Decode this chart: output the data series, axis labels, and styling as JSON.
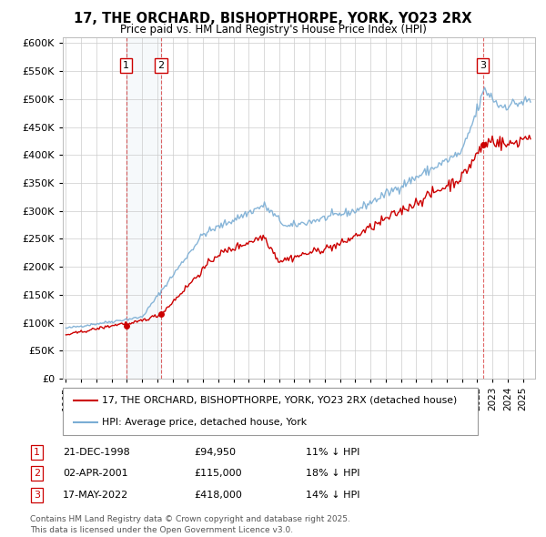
{
  "title": "17, THE ORCHARD, BISHOPTHORPE, YORK, YO23 2RX",
  "subtitle": "Price paid vs. HM Land Registry's House Price Index (HPI)",
  "ylim": [
    0,
    600000
  ],
  "yticks": [
    0,
    50000,
    100000,
    150000,
    200000,
    250000,
    300000,
    350000,
    400000,
    450000,
    500000,
    550000,
    600000
  ],
  "xlim_start": 1994.8,
  "xlim_end": 2025.8,
  "hpi_color": "#7aadd4",
  "price_color": "#cc0000",
  "grid_color": "#cccccc",
  "span_color": "#c8d8e8",
  "purchases": [
    {
      "label": "1",
      "date_num": 1998.97,
      "price": 94950,
      "date_str": "21-DEC-1998",
      "hpi_pct": "11% ↓ HPI"
    },
    {
      "label": "2",
      "date_num": 2001.25,
      "price": 115000,
      "date_str": "02-APR-2001",
      "hpi_pct": "18% ↓ HPI"
    },
    {
      "label": "3",
      "date_num": 2022.38,
      "price": 418000,
      "date_str": "17-MAY-2022",
      "hpi_pct": "14% ↓ HPI"
    }
  ],
  "legend_line1": "17, THE ORCHARD, BISHOPTHORPE, YORK, YO23 2RX (detached house)",
  "legend_line2": "HPI: Average price, detached house, York",
  "footnote": "Contains HM Land Registry data © Crown copyright and database right 2025.\nThis data is licensed under the Open Government Licence v3.0.",
  "table_rows": [
    [
      "1",
      "21-DEC-1998",
      "£94,950",
      "11% ↓ HPI"
    ],
    [
      "2",
      "02-APR-2001",
      "£115,000",
      "18% ↓ HPI"
    ],
    [
      "3",
      "17-MAY-2022",
      "£418,000",
      "14% ↓ HPI"
    ]
  ]
}
